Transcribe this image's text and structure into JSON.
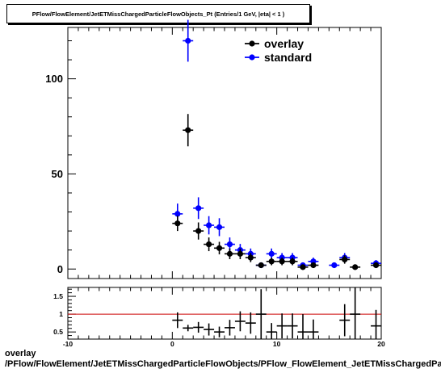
{
  "title": "PFlow/FlowElement/JetETMissChargedParticleFlowObjects_Pt (Entries/1 GeV, |eta| < 1 )",
  "footer": {
    "line1": "overlay",
    "line2": "/PFlow/FlowElement/JetETMissChargedParticleFlowObjects/PFlow_FlowElement_JetETMissChargedParticleFlowObjects_Pt"
  },
  "colors": {
    "overlay": "#000000",
    "standard": "#0000ff",
    "ratio_line": "#cc0000"
  },
  "chart_data": [
    {
      "type": "scatter",
      "panel": "main",
      "title": "PFlow/FlowElement/JetETMissChargedParticleFlowObjects_Pt (Entries/1 GeV, |eta| < 1 )",
      "xlim": [
        -10,
        20
      ],
      "ylim": [
        -5,
        127
      ],
      "yticks": [
        0,
        50,
        100
      ],
      "legend_position": "top-right",
      "series": [
        {
          "name": "overlay",
          "color": "#000000",
          "points": [
            {
              "x": 0.5,
              "y": 24,
              "err": 4
            },
            {
              "x": 1.5,
              "y": 73,
              "err": 8.5
            },
            {
              "x": 2.5,
              "y": 20,
              "err": 4.5
            },
            {
              "x": 3.5,
              "y": 13,
              "err": 3.6
            },
            {
              "x": 4.5,
              "y": 11,
              "err": 3.3
            },
            {
              "x": 5.5,
              "y": 8,
              "err": 2.8
            },
            {
              "x": 6.5,
              "y": 8,
              "err": 2.8
            },
            {
              "x": 7.5,
              "y": 6,
              "err": 2.4
            },
            {
              "x": 8.5,
              "y": 2,
              "err": 1.4
            },
            {
              "x": 9.5,
              "y": 4,
              "err": 2
            },
            {
              "x": 10.5,
              "y": 4,
              "err": 2
            },
            {
              "x": 11.5,
              "y": 4,
              "err": 2
            },
            {
              "x": 12.5,
              "y": 1,
              "err": 1
            },
            {
              "x": 13.5,
              "y": 2,
              "err": 1.4
            },
            {
              "x": 16.5,
              "y": 5,
              "err": 2.2
            },
            {
              "x": 17.5,
              "y": 1,
              "err": 1
            },
            {
              "x": 19.5,
              "y": 2,
              "err": 1.4
            }
          ]
        },
        {
          "name": "standard",
          "color": "#0000ff",
          "points": [
            {
              "x": 0.5,
              "y": 29,
              "err": 5.4
            },
            {
              "x": 1.5,
              "y": 120,
              "err": 11
            },
            {
              "x": 2.5,
              "y": 32,
              "err": 5.7
            },
            {
              "x": 3.5,
              "y": 23,
              "err": 4.8
            },
            {
              "x": 4.5,
              "y": 22,
              "err": 4.7
            },
            {
              "x": 5.5,
              "y": 13,
              "err": 3.6
            },
            {
              "x": 6.5,
              "y": 10,
              "err": 3.2
            },
            {
              "x": 7.5,
              "y": 8,
              "err": 2.8
            },
            {
              "x": 8.5,
              "y": 2,
              "err": 1.4
            },
            {
              "x": 9.5,
              "y": 8,
              "err": 2.8
            },
            {
              "x": 10.5,
              "y": 6,
              "err": 2.4
            },
            {
              "x": 11.5,
              "y": 6,
              "err": 2.4
            },
            {
              "x": 12.5,
              "y": 2,
              "err": 1.4
            },
            {
              "x": 13.5,
              "y": 4,
              "err": 2
            },
            {
              "x": 15.5,
              "y": 2,
              "err": 1.4
            },
            {
              "x": 16.5,
              "y": 6,
              "err": 2.4
            },
            {
              "x": 19.5,
              "y": 3,
              "err": 1.7
            }
          ]
        }
      ]
    },
    {
      "type": "scatter",
      "panel": "ratio",
      "xlim": [
        -10,
        20
      ],
      "ylim": [
        0.3,
        1.75
      ],
      "yticks": [
        0.5,
        1,
        1.5
      ],
      "ytick_labels": [
        "0.5",
        "1",
        "1.5"
      ],
      "xticks": [
        -10,
        0,
        10,
        20
      ],
      "xtick_labels": [
        "-10",
        "0",
        "10",
        "20"
      ],
      "reference_line": 1,
      "series": [
        {
          "name": "",
          "color": "#000000",
          "points": [
            {
              "x": 0.5,
              "y": 0.83,
              "err": 0.22
            },
            {
              "x": 1.5,
              "y": 0.61,
              "err": 0.09
            },
            {
              "x": 2.5,
              "y": 0.63,
              "err": 0.15
            },
            {
              "x": 3.5,
              "y": 0.57,
              "err": 0.17
            },
            {
              "x": 4.5,
              "y": 0.5,
              "err": 0.15
            },
            {
              "x": 5.5,
              "y": 0.62,
              "err": 0.22
            },
            {
              "x": 6.5,
              "y": 0.8,
              "err": 0.28
            },
            {
              "x": 7.5,
              "y": 0.75,
              "err": 0.3
            },
            {
              "x": 8.5,
              "y": 1.0,
              "err": 0.7
            },
            {
              "x": 9.5,
              "y": 0.5,
              "err": 0.25
            },
            {
              "x": 10.5,
              "y": 0.67,
              "err": 0.35
            },
            {
              "x": 11.5,
              "y": 0.67,
              "err": 0.35
            },
            {
              "x": 12.5,
              "y": 0.5,
              "err": 0.5
            },
            {
              "x": 13.5,
              "y": 0.5,
              "err": 0.35
            },
            {
              "x": 16.5,
              "y": 0.83,
              "err": 0.45
            },
            {
              "x": 17.5,
              "y": 1.0,
              "err": 1.0
            },
            {
              "x": 19.5,
              "y": 0.67,
              "err": 0.45
            }
          ]
        }
      ]
    }
  ]
}
